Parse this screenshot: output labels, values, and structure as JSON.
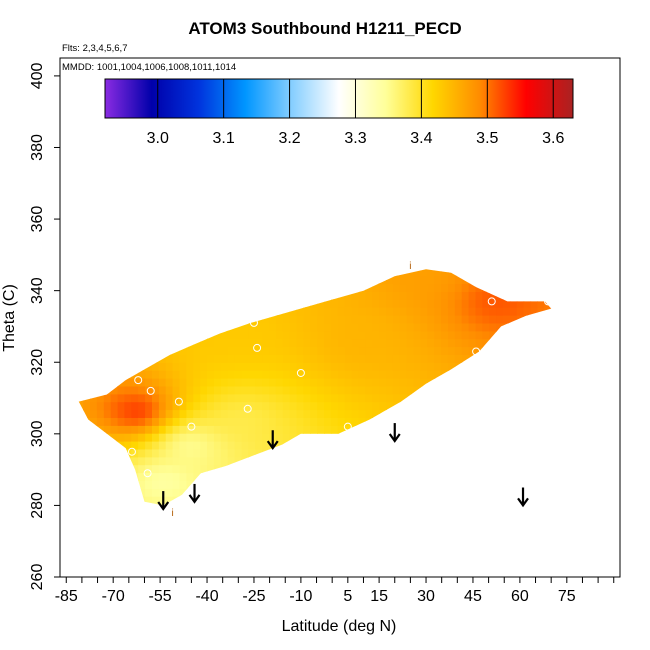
{
  "chart_data": {
    "type": "heatmap",
    "title": "ATOM3 Southbound H1211_PECD",
    "flights_note": "Flts: 2,3,4,5,6,7",
    "dates_note": "MMDD: 1001,1004,1006,1008,1011,1014",
    "xlabel": "Latitude (deg N)",
    "ylabel": "Theta (C)",
    "xlim": [
      -87,
      92
    ],
    "ylim": [
      260,
      405
    ],
    "xticks": [
      -85,
      -70,
      -55,
      -40,
      -25,
      -10,
      5,
      15,
      30,
      45,
      60,
      75
    ],
    "yticks": [
      260,
      280,
      300,
      320,
      340,
      360,
      380,
      400
    ],
    "colorbar": {
      "min": 2.92,
      "max": 3.63,
      "ticks": [
        3.0,
        3.1,
        3.2,
        3.3,
        3.4,
        3.5,
        3.6
      ],
      "colors": [
        "#8a2be2",
        "#0000aa",
        "#0033dd",
        "#0096ff",
        "#87cfff",
        "#ffffff",
        "#ffff99",
        "#ffd700",
        "#ff8c00",
        "#ff0000",
        "#aa2222"
      ]
    },
    "field_outline": [
      [
        -81,
        309
      ],
      [
        -72,
        311
      ],
      [
        -66,
        315
      ],
      [
        -60,
        318
      ],
      [
        -52,
        322
      ],
      [
        -44,
        325
      ],
      [
        -36,
        328
      ],
      [
        -26,
        331
      ],
      [
        -14,
        334
      ],
      [
        -2,
        337
      ],
      [
        10,
        340
      ],
      [
        20,
        344
      ],
      [
        30,
        346
      ],
      [
        38,
        345
      ],
      [
        46,
        341
      ],
      [
        56,
        337
      ],
      [
        68,
        337
      ],
      [
        70,
        335
      ],
      [
        62,
        333
      ],
      [
        54,
        330
      ],
      [
        47,
        323
      ],
      [
        38,
        318
      ],
      [
        30,
        314
      ],
      [
        22,
        309
      ],
      [
        12,
        304
      ],
      [
        2,
        300
      ],
      [
        -10,
        300
      ],
      [
        -16,
        297
      ],
      [
        -25,
        294
      ],
      [
        -34,
        291
      ],
      [
        -42,
        289
      ],
      [
        -48,
        283
      ],
      [
        -54,
        280
      ],
      [
        -60,
        281
      ],
      [
        -63,
        290
      ],
      [
        -66,
        296
      ],
      [
        -72,
        300
      ],
      [
        -78,
        304
      ],
      [
        -81,
        309
      ]
    ],
    "field_hotspots": [
      {
        "lat": -63,
        "theta": 305,
        "value": 3.55,
        "spread": 1.2
      },
      {
        "lat": 51,
        "theta": 336,
        "value": 3.52,
        "spread": 1.0
      },
      {
        "lat": 28,
        "theta": 343,
        "value": 3.47,
        "spread": 1.0
      },
      {
        "lat": 8,
        "theta": 325,
        "value": 3.45,
        "spread": 1.3
      },
      {
        "lat": -32,
        "theta": 326,
        "value": 3.43,
        "spread": 1.1
      },
      {
        "lat": -47,
        "theta": 296,
        "value": 3.34,
        "spread": 1.5
      },
      {
        "lat": -55,
        "theta": 286,
        "value": 3.33,
        "spread": 1.0
      },
      {
        "lat": -30,
        "theta": 303,
        "value": 3.38,
        "spread": 1.1
      }
    ],
    "sample_points": [
      {
        "lat": -62,
        "theta": 315
      },
      {
        "lat": -58,
        "theta": 312
      },
      {
        "lat": -64,
        "theta": 295
      },
      {
        "lat": -59,
        "theta": 289
      },
      {
        "lat": -49,
        "theta": 309
      },
      {
        "lat": -45,
        "theta": 302
      },
      {
        "lat": -27,
        "theta": 307
      },
      {
        "lat": -25,
        "theta": 331
      },
      {
        "lat": -24,
        "theta": 324
      },
      {
        "lat": -10,
        "theta": 317
      },
      {
        "lat": 5,
        "theta": 302
      },
      {
        "lat": 51,
        "theta": 337
      },
      {
        "lat": 46,
        "theta": 323
      },
      {
        "lat": 69,
        "theta": 337
      }
    ],
    "point_labels": [
      {
        "text": "i",
        "lat": 25,
        "theta": 346
      },
      {
        "text": "i",
        "lat": -51,
        "theta": 277
      }
    ],
    "arrows": [
      {
        "lat": -54,
        "theta_top": 284,
        "theta_bottom": 279
      },
      {
        "lat": -44,
        "theta_top": 286,
        "theta_bottom": 281
      },
      {
        "lat": -19,
        "theta_top": 301,
        "theta_bottom": 296
      },
      {
        "lat": 20,
        "theta_top": 303,
        "theta_bottom": 298
      },
      {
        "lat": 61,
        "theta_top": 285,
        "theta_bottom": 280
      }
    ]
  }
}
